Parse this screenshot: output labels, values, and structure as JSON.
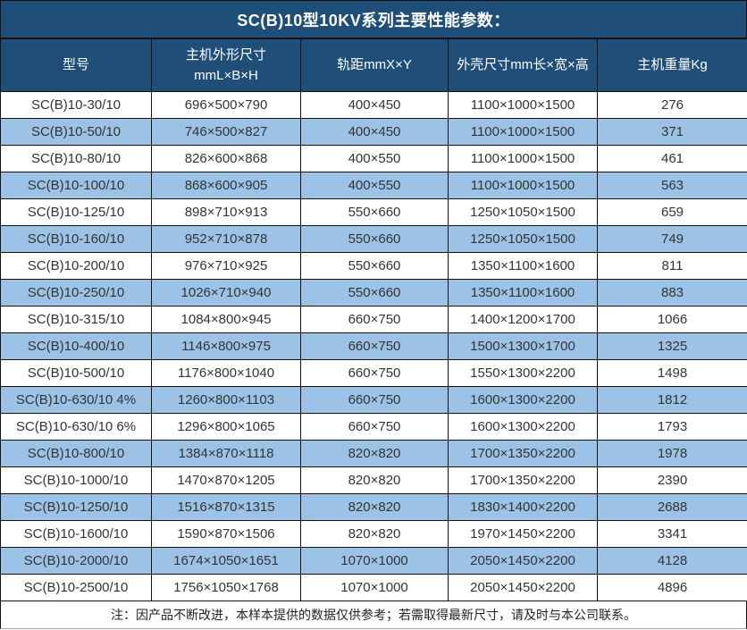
{
  "title": "SC(B)10型10KV系列主要性能参数：",
  "note": "注：因产品不断改进，本样本提供的数据仅供参考；若需取得最新尺寸，请及时与本公司联系。",
  "colors": {
    "header_bg": "#1F4E79",
    "alt_row_bg": "#9CC3E6",
    "border": "#111111",
    "header_text": "#ffffff",
    "cell_text": "#333333"
  },
  "columns": {
    "c1": "型号",
    "c2a": "主机外形尺寸",
    "c2b": "mmL×B×H",
    "c3": "轨距mmX×Y",
    "c4": "外壳尺寸mm长×宽×高",
    "c5": "主机重量Kg"
  },
  "table": {
    "column_labels": [
      "型号",
      "主机外形尺寸 mmL×B×H",
      "轨距mmX×Y",
      "外壳尺寸mm长×宽×高",
      "主机重量Kg"
    ],
    "rows": [
      [
        "SC(B)10-30/10",
        "696×500×790",
        "400×450",
        "1100×1000×1500",
        "276"
      ],
      [
        "SC(B)10-50/10",
        "746×500×827",
        "400×450",
        "1100×1000×1500",
        "371"
      ],
      [
        "SC(B)10-80/10",
        "826×600×868",
        "400×550",
        "1100×1000×1500",
        "461"
      ],
      [
        "SC(B)10-100/10",
        "868×600×905",
        "400×550",
        "1100×1000×1500",
        "563"
      ],
      [
        "SC(B)10-125/10",
        "898×710×913",
        "550×660",
        "1250×1050×1500",
        "659"
      ],
      [
        "SC(B)10-160/10",
        "952×710×878",
        "550×660",
        "1250×1050×1500",
        "749"
      ],
      [
        "SC(B)10-200/10",
        "976×710×925",
        "550×660",
        "1350×1100×1600",
        "811"
      ],
      [
        "SC(B)10-250/10",
        "1026×710×940",
        "550×660",
        "1350×1100×1600",
        "883"
      ],
      [
        "SC(B)10-315/10",
        "1084×800×945",
        "660×750",
        "1400×1200×1700",
        "1066"
      ],
      [
        "SC(B)10-400/10",
        "1146×800×975",
        "660×750",
        "1500×1300×1700",
        "1325"
      ],
      [
        "SC(B)10-500/10",
        "1176×800×1040",
        "660×750",
        "1550×1300×2200",
        "1498"
      ],
      [
        "SC(B)10-630/10 4%",
        "1260×800×1103",
        "660×750",
        "1600×1300×2200",
        "1812"
      ],
      [
        "SC(B)10-630/10 6%",
        "1296×800×1065",
        "660×750",
        "1600×1300×2200",
        "1793"
      ],
      [
        "SC(B)10-800/10",
        "1384×870×1118",
        "820×820",
        "1700×1350×2200",
        "1978"
      ],
      [
        "SC(B)10-1000/10",
        "1470×870×1205",
        "820×820",
        "1700×1350×2200",
        "2390"
      ],
      [
        "SC(B)10-1250/10",
        "1516×870×1315",
        "820×820",
        "1830×1400×2200",
        "2688"
      ],
      [
        "SC(B)10-1600/10",
        "1590×870×1506",
        "820×820",
        "1970×1450×2200",
        "3341"
      ],
      [
        "SC(B)10-2000/10",
        "1674×1050×1651",
        "1070×1000",
        "2050×1450×2200",
        "4128"
      ],
      [
        "SC(B)10-2500/10",
        "1756×1050×1768",
        "1070×1000",
        "2050×1450×2200",
        "4896"
      ]
    ]
  }
}
